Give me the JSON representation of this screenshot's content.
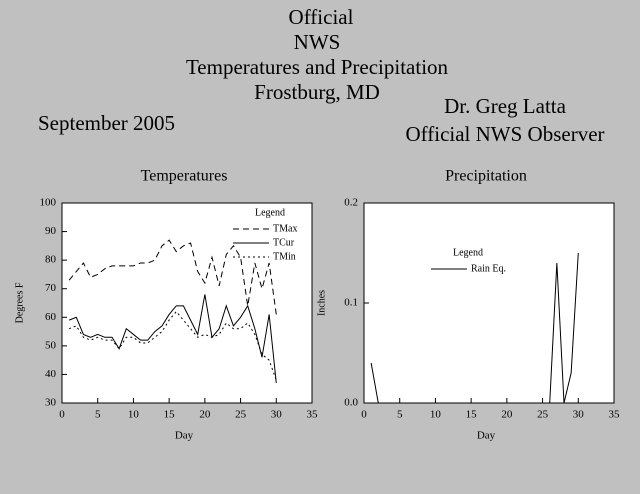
{
  "header": {
    "title_lines": [
      "Official",
      "NWS",
      "Temperatures and Precipitation",
      "Frostburg, MD"
    ],
    "period": "September 2005",
    "observer_lines": [
      "Dr. Greg Latta",
      "Official NWS Observer"
    ]
  },
  "chart_data": [
    {
      "type": "line",
      "title": "Temperatures",
      "x_label": "Day",
      "y_label": "Degrees F",
      "legend_title": "Legend",
      "x": [
        1,
        2,
        3,
        4,
        5,
        6,
        7,
        8,
        9,
        10,
        11,
        12,
        13,
        14,
        15,
        16,
        17,
        18,
        19,
        20,
        21,
        22,
        23,
        24,
        25,
        26,
        27,
        28,
        29,
        30
      ],
      "series": [
        {
          "name": "TMax",
          "color": "#000000",
          "dash": "dashed",
          "values": [
            73,
            76,
            79,
            74,
            75,
            77,
            78,
            78,
            78,
            78,
            79,
            79,
            80,
            85,
            87,
            83,
            85,
            86,
            76,
            72,
            81,
            71,
            82,
            85,
            81,
            64,
            79,
            70,
            79,
            61
          ]
        },
        {
          "name": "TCur",
          "color": "#000000",
          "dash": "solid",
          "values": [
            59,
            60,
            54,
            53,
            54,
            53,
            53,
            49,
            56,
            54,
            52,
            52,
            55,
            57,
            61,
            64,
            64,
            59,
            54,
            68,
            53,
            56,
            64,
            57,
            60,
            64,
            56,
            46,
            61,
            37
          ]
        },
        {
          "name": "TMin",
          "color": "#000000",
          "dash": "dotted",
          "values": [
            56,
            57,
            53,
            52,
            53,
            52,
            52,
            49,
            53,
            53,
            51,
            51,
            53,
            55,
            59,
            62,
            59,
            56,
            53,
            54,
            53,
            54,
            58,
            56,
            56,
            58,
            54,
            47,
            45,
            38
          ]
        }
      ],
      "xlim": [
        0,
        35
      ],
      "xticks": [
        0,
        5,
        10,
        15,
        20,
        25,
        30,
        35
      ],
      "ylim": [
        30,
        100
      ],
      "yticks": [
        30,
        40,
        50,
        60,
        70,
        80,
        90,
        100
      ],
      "grid": false,
      "legend": "upper right"
    },
    {
      "type": "line",
      "title": "Precipitation",
      "x_label": "Day",
      "y_label": "Inches",
      "legend_title": "Legend",
      "x": [
        1,
        2,
        3,
        4,
        5,
        6,
        7,
        8,
        9,
        10,
        11,
        12,
        13,
        14,
        15,
        16,
        17,
        18,
        19,
        20,
        21,
        22,
        23,
        24,
        25,
        26,
        27,
        28,
        29,
        30
      ],
      "series": [
        {
          "name": "Rain Eq.",
          "color": "#000000",
          "dash": "solid",
          "values": [
            0.04,
            0,
            0,
            0,
            0,
            0,
            0,
            0,
            0,
            0,
            0,
            0,
            0,
            0,
            0,
            0,
            0,
            0,
            0,
            0,
            0,
            0,
            0,
            0,
            0,
            0,
            0.14,
            0,
            0.03,
            0.15
          ]
        }
      ],
      "xlim": [
        0,
        35
      ],
      "xticks": [
        0,
        5,
        10,
        15,
        20,
        25,
        30,
        35
      ],
      "ylim": [
        0,
        0.2
      ],
      "yticks": [
        {
          "value": 0,
          "label": "0.0"
        },
        0.1,
        0.2
      ],
      "grid": false,
      "legend": "upper center"
    }
  ]
}
